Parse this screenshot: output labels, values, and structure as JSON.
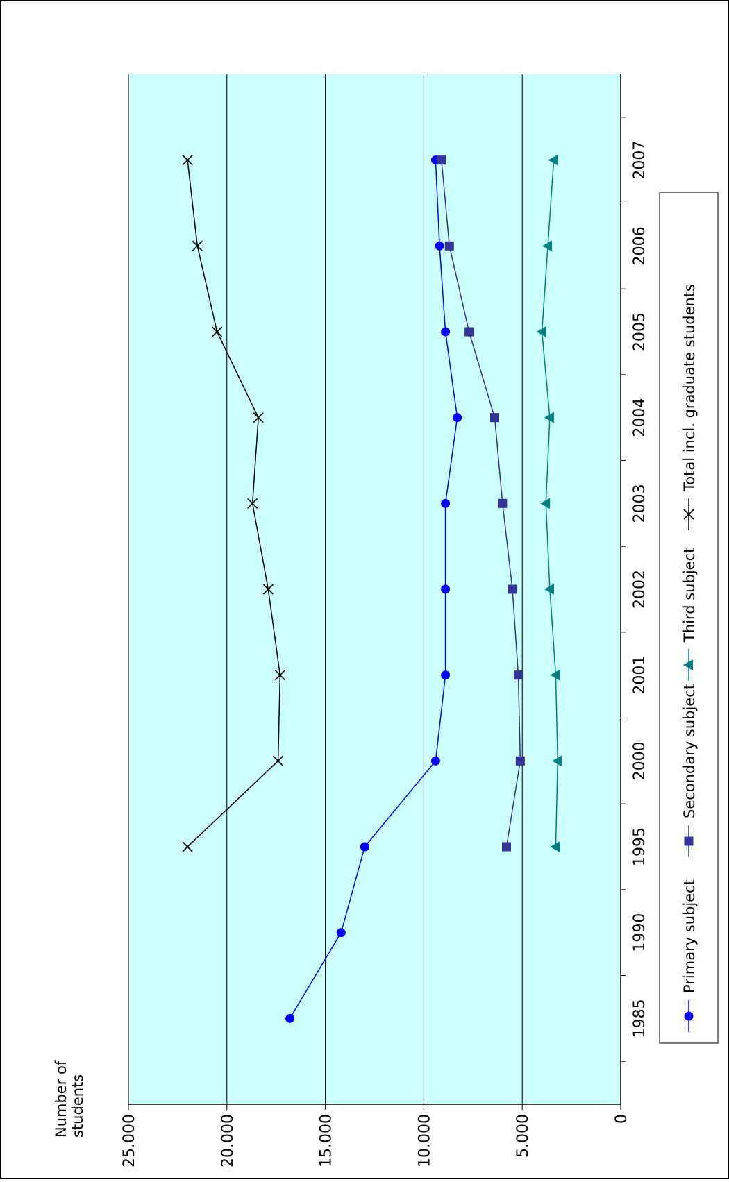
{
  "chart_data": {
    "type": "line",
    "ylabel": "Number of\nstudents",
    "ylim": [
      0,
      25000
    ],
    "yticks": [
      0,
      5000,
      10000,
      15000,
      20000,
      25000
    ],
    "ytick_labels": [
      "0",
      "5.000",
      "10.000",
      "15.000",
      "20.000",
      "25.000"
    ],
    "categories": [
      "1985",
      "1990",
      "1995",
      "2000",
      "2001",
      "2002",
      "2003",
      "2004",
      "2005",
      "2006",
      "2007"
    ],
    "grid": true,
    "legend": "right",
    "background": "#ccffff",
    "series": [
      {
        "name": "Primary subject",
        "color": "#0000ff",
        "marker": "circle",
        "values": [
          16800,
          14200,
          13000,
          9400,
          8900,
          8900,
          8900,
          8300,
          8900,
          9200,
          9400
        ]
      },
      {
        "name": "Secondary subject",
        "color": "#333399",
        "marker": "square",
        "values": [
          null,
          null,
          5800,
          5100,
          5200,
          5500,
          6000,
          6400,
          7700,
          8700,
          9100
        ]
      },
      {
        "name": "Third subject",
        "color": "#008080",
        "marker": "triangle",
        "values": [
          null,
          null,
          3300,
          3200,
          3300,
          3600,
          3800,
          3600,
          4000,
          3700,
          3400
        ]
      },
      {
        "name": "Total incl. graduate students",
        "color": "#000000",
        "marker": "x",
        "values": [
          null,
          null,
          22000,
          17400,
          17300,
          17900,
          18700,
          18400,
          20500,
          21500,
          22000
        ]
      }
    ]
  }
}
